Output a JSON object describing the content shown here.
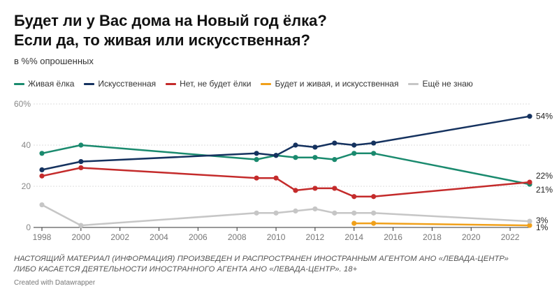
{
  "title_line1": "Будет ли у Вас дома на Новый год ёлка?",
  "title_line2": "Если да, то живая или искусственная?",
  "subtitle": "в %% опрошенных",
  "note_line1": "НАСТОЯЩИЙ МАТЕРИАЛ (ИНФОРМАЦИЯ) ПРОИЗВЕДЕН И РАСПРОСТРАНЕН ИНОСТРАННЫМ АГЕНТОМ АНО «ЛЕВАДА-ЦЕНТР»",
  "note_line2": "ЛИБО КАСАЕТСЯ ДЕЯТЕЛЬНОСТИ ИНОСТРАННОГО АГЕНТА АНО «ЛЕВАДА-ЦЕНТР». 18+",
  "credit": "Created with Datawrapper",
  "chart_data": {
    "type": "line",
    "title": "Будет ли у Вас дома на Новый год ёлка? Если да, то живая или искусственная?",
    "ylabel": "в %% опрошенных",
    "xlim": [
      1998,
      2023
    ],
    "ylim": [
      0,
      60
    ],
    "y_ticks": [
      0,
      20,
      40,
      60
    ],
    "y_tick_labels": [
      "0",
      "20",
      "40",
      "60%"
    ],
    "x_ticks": [
      1998,
      2000,
      2002,
      2004,
      2006,
      2008,
      2010,
      2012,
      2014,
      2016,
      2018,
      2020,
      2022
    ],
    "x_tick_labels": [
      "1998",
      "2000",
      "2002",
      "2004",
      "2006",
      "2008",
      "2010",
      "2012",
      "2014",
      "2016",
      "2018",
      "2020",
      "2022"
    ],
    "grid": true,
    "legend": "top",
    "series": [
      {
        "name": "Живая ёлка",
        "color": "#1a8a6e",
        "x": [
          1998,
          2000,
          2009,
          2010,
          2011,
          2012,
          2013,
          2014,
          2015,
          2023
        ],
        "values": [
          36,
          40,
          33,
          35,
          34,
          34,
          33,
          36,
          36,
          21
        ],
        "end_label": "21%"
      },
      {
        "name": "Искусственная",
        "color": "#15325f",
        "x": [
          1998,
          2000,
          2009,
          2010,
          2011,
          2012,
          2013,
          2014,
          2015,
          2023
        ],
        "values": [
          28,
          32,
          36,
          35,
          40,
          39,
          41,
          40,
          41,
          54
        ],
        "end_label": "54%"
      },
      {
        "name": "Нет, не будет ёлки",
        "color": "#c42b2b",
        "x": [
          1998,
          2000,
          2009,
          2010,
          2011,
          2012,
          2013,
          2014,
          2015,
          2023
        ],
        "values": [
          25,
          29,
          24,
          24,
          18,
          19,
          19,
          15,
          15,
          22
        ],
        "end_label": "22%"
      },
      {
        "name": "Будет и живая, и искусственная",
        "color": "#f0a01a",
        "x": [
          2014,
          2015,
          2023
        ],
        "values": [
          2,
          2,
          1
        ],
        "end_label": "1%"
      },
      {
        "name": "Ещё не знаю",
        "color": "#c6c6c6",
        "x": [
          1998,
          2000,
          2009,
          2010,
          2011,
          2012,
          2013,
          2014,
          2015,
          2023
        ],
        "values": [
          11,
          1,
          7,
          7,
          8,
          9,
          7,
          7,
          7,
          3
        ],
        "end_label": "3%"
      }
    ]
  }
}
